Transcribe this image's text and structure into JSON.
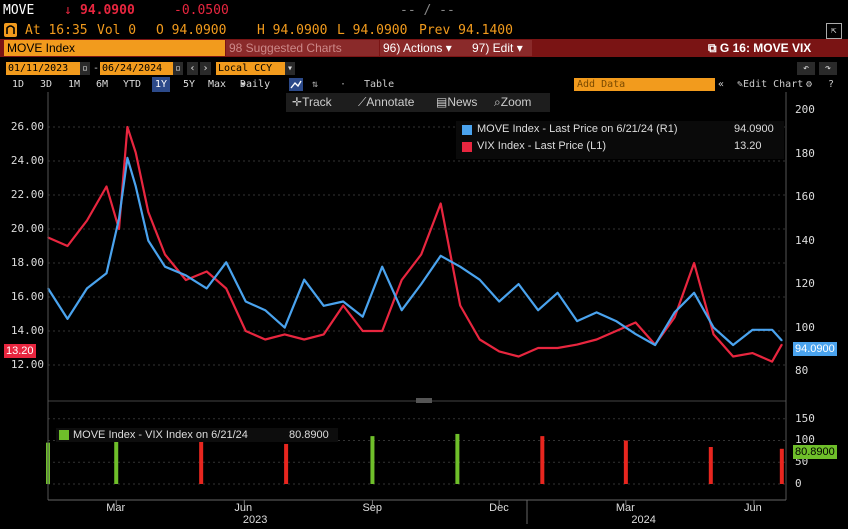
{
  "header": {
    "ticker": "MOVE",
    "change_arrow": "↓",
    "last_price": "94.0900",
    "net_change": "-0.0500",
    "range_placeholder": "-- / --",
    "status_icon": "exchange-icon",
    "at_time": "At 16:35",
    "volume": "Vol 0",
    "open": "O 94.0900",
    "high": "H 94.0900",
    "low": "L 94.0900",
    "prev": "Prev 94.1400"
  },
  "tabs": {
    "security": "MOVE Index",
    "suggested": "98 Suggested Charts",
    "actions": "96) Actions",
    "edit": "97) Edit",
    "chart_title": "G 16: MOVE VIX"
  },
  "range_bar": {
    "start_date": "01/11/2023",
    "end_date": "06/24/2024",
    "currency": "Local CCY"
  },
  "periods": [
    "1D",
    "3D",
    "1M",
    "6M",
    "YTD",
    "1Y",
    "5Y",
    "Max"
  ],
  "active_period": "1Y",
  "frequency": "Daily",
  "table_label": "Table",
  "add_data": "Add Data",
  "edit_chart": "Edit Chart",
  "tools": {
    "track": "Track",
    "annotate": "Annotate",
    "news": "News",
    "zoom": "Zoom"
  },
  "colors": {
    "move": "#4aa3ee",
    "vix": "#e8263f",
    "spread_green": "#6fbf2a",
    "spread_red": "#e8261f",
    "orange": "#f29b1d",
    "maroon": "#7a1414"
  },
  "chart_data": [
    {
      "type": "line",
      "legend_position": "top-right",
      "grid": true,
      "x_ticks": [
        "Mar",
        "Jun",
        "Sep",
        "Dec",
        "Mar",
        "Jun"
      ],
      "year_labels": [
        "2023",
        "2024"
      ],
      "left_axis": {
        "ticks": [
          "26.00",
          "24.00",
          "22.00",
          "20.00",
          "18.00",
          "16.00",
          "14.00",
          "12.00"
        ],
        "range": [
          11,
          27
        ]
      },
      "right_axis": {
        "ticks": [
          "200",
          "180",
          "160",
          "140",
          "120",
          "100",
          "80"
        ],
        "range": [
          75,
          200
        ]
      },
      "x_range": [
        "2023-01-11",
        "2024-06-24"
      ],
      "series": [
        {
          "name": "MOVE Index - Last Price on 6/21/24 (R1)",
          "last_value": "94.0900",
          "axis": "right",
          "x": [
            "2023-01-11",
            "2023-01-25",
            "2023-02-08",
            "2023-02-22",
            "2023-03-03",
            "2023-03-09",
            "2023-03-15",
            "2023-03-24",
            "2023-04-05",
            "2023-04-20",
            "2023-05-05",
            "2023-05-19",
            "2023-06-02",
            "2023-06-16",
            "2023-06-30",
            "2023-07-14",
            "2023-07-28",
            "2023-08-11",
            "2023-08-25",
            "2023-09-08",
            "2023-09-22",
            "2023-10-06",
            "2023-10-20",
            "2023-11-03",
            "2023-11-17",
            "2023-12-01",
            "2023-12-15",
            "2023-12-29",
            "2024-01-12",
            "2024-01-26",
            "2024-02-09",
            "2024-02-23",
            "2024-03-08",
            "2024-03-22",
            "2024-04-05",
            "2024-04-19",
            "2024-05-03",
            "2024-05-17",
            "2024-05-31",
            "2024-06-14",
            "2024-06-21"
          ],
          "values": [
            118,
            104,
            118,
            125,
            150,
            178,
            165,
            140,
            128,
            124,
            118,
            130,
            112,
            108,
            100,
            122,
            110,
            112,
            105,
            128,
            108,
            120,
            133,
            128,
            122,
            112,
            120,
            108,
            116,
            103,
            107,
            103,
            97,
            92,
            107,
            116,
            100,
            92,
            99,
            99,
            94.09
          ]
        },
        {
          "name": "VIX Index - Last Price (L1)",
          "last_value": "13.20",
          "axis": "left",
          "x": [
            "2023-01-11",
            "2023-01-25",
            "2023-02-08",
            "2023-02-22",
            "2023-03-03",
            "2023-03-09",
            "2023-03-15",
            "2023-03-24",
            "2023-04-05",
            "2023-04-20",
            "2023-05-05",
            "2023-05-19",
            "2023-06-02",
            "2023-06-16",
            "2023-06-30",
            "2023-07-14",
            "2023-07-28",
            "2023-08-11",
            "2023-08-25",
            "2023-09-08",
            "2023-09-22",
            "2023-10-06",
            "2023-10-20",
            "2023-11-03",
            "2023-11-17",
            "2023-12-01",
            "2023-12-15",
            "2023-12-29",
            "2024-01-12",
            "2024-01-26",
            "2024-02-09",
            "2024-02-23",
            "2024-03-08",
            "2024-03-22",
            "2024-04-05",
            "2024-04-19",
            "2024-05-03",
            "2024-05-17",
            "2024-05-31",
            "2024-06-14",
            "2024-06-21"
          ],
          "values": [
            19.5,
            19.0,
            20.5,
            22.5,
            20.0,
            26.0,
            24.5,
            21.0,
            18.5,
            17.0,
            17.5,
            16.5,
            14.0,
            13.5,
            13.8,
            13.5,
            13.8,
            15.5,
            14.0,
            14.0,
            17.0,
            18.5,
            21.5,
            15.5,
            13.5,
            12.8,
            12.5,
            13.0,
            13.0,
            13.2,
            13.5,
            14.0,
            14.5,
            13.2,
            14.8,
            18.0,
            13.8,
            12.5,
            12.7,
            12.2,
            13.2
          ]
        }
      ]
    },
    {
      "type": "bar",
      "grid": true,
      "right_axis": {
        "ticks": [
          "150",
          "100",
          "50",
          "0"
        ],
        "range": [
          0,
          170
        ]
      },
      "series": [
        {
          "name": "MOVE Index - VIX Index on 6/21/24",
          "last_value": "80.8900",
          "description_colors": "green=up, red=down",
          "x": [
            "2023-01-11",
            "2023-03-01",
            "2023-05-01",
            "2023-07-01",
            "2023-09-01",
            "2023-11-01",
            "2024-01-01",
            "2024-03-01",
            "2024-05-01",
            "2024-06-21"
          ],
          "values": [
            95,
            110,
            100,
            92,
            110,
            115,
            110,
            100,
            85,
            80.89
          ]
        }
      ]
    }
  ]
}
